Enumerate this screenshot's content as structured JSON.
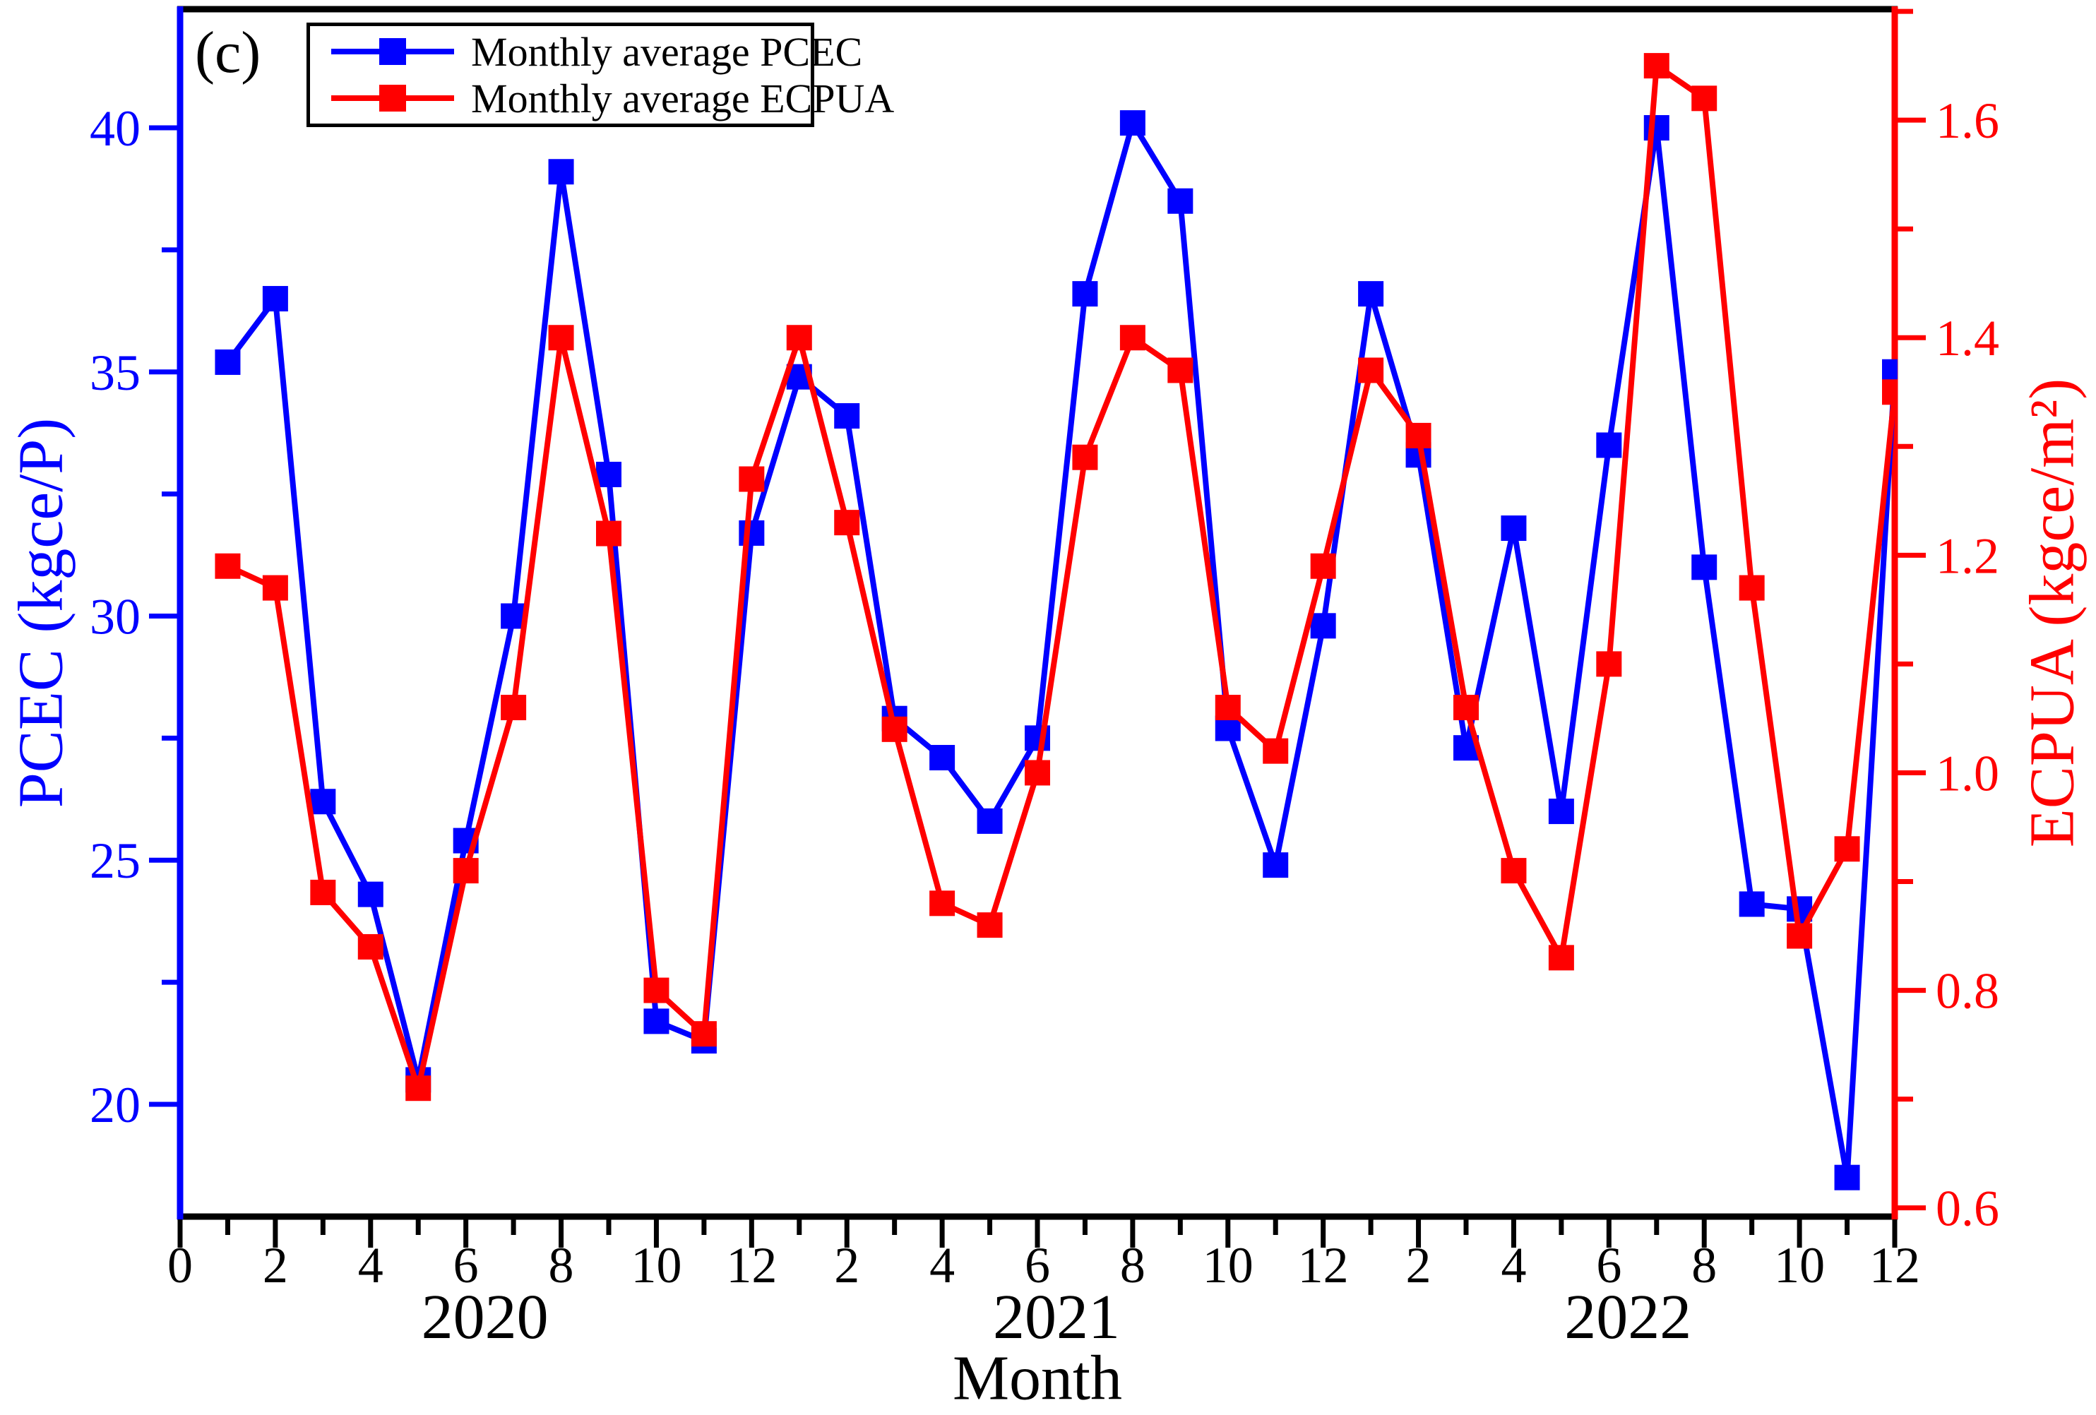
{
  "figure": {
    "panel_label": "(c)",
    "background": "#ffffff",
    "frame_color": "#000000"
  },
  "legend": {
    "items": [
      {
        "label": "Monthly average PCEC",
        "color": "#0000ff"
      },
      {
        "label": "Monthly average ECPUA",
        "color": "#ff0000"
      }
    ]
  },
  "chart_data": {
    "type": "line",
    "title": "",
    "xlabel": "Month",
    "x_months": [
      1,
      2,
      3,
      4,
      5,
      6,
      7,
      8,
      9,
      10,
      11,
      12,
      13,
      14,
      15,
      16,
      17,
      18,
      19,
      20,
      21,
      22,
      23,
      24,
      25,
      26,
      27,
      28,
      29,
      30,
      31,
      32,
      33,
      34,
      35,
      36
    ],
    "x_major_tick_months": [
      0,
      2,
      4,
      6,
      8,
      10,
      12,
      14,
      16,
      18,
      20,
      22,
      24,
      26,
      28,
      30,
      32,
      34,
      36
    ],
    "x_major_tick_labels": [
      "0",
      "2",
      "4",
      "6",
      "8",
      "10",
      "12",
      "2",
      "4",
      "6",
      "8",
      "10",
      "12",
      "2",
      "4",
      "6",
      "8",
      "10",
      "12"
    ],
    "year_labels": [
      {
        "label": "2020",
        "center_month": 6.4
      },
      {
        "label": "2021",
        "center_month": 18.4
      },
      {
        "label": "2022",
        "center_month": 30.4
      }
    ],
    "series": [
      {
        "name": "Monthly average PCEC",
        "axis": "left",
        "color": "#0000ff",
        "marker": "square",
        "values": [
          35.2,
          36.5,
          26.2,
          24.3,
          20.5,
          25.4,
          30.0,
          39.1,
          32.9,
          21.7,
          21.3,
          31.7,
          34.9,
          34.1,
          27.9,
          27.1,
          25.8,
          27.5,
          36.6,
          40.1,
          38.5,
          27.7,
          24.9,
          29.8,
          36.6,
          33.3,
          27.3,
          31.8,
          26.0,
          33.5,
          40.0,
          31.0,
          24.1,
          24.0,
          18.5,
          35.0
        ]
      },
      {
        "name": "Monthly average ECPUA",
        "axis": "right",
        "color": "#ff0000",
        "marker": "square",
        "values": [
          1.19,
          1.17,
          0.89,
          0.84,
          0.71,
          0.91,
          1.06,
          1.4,
          1.22,
          0.8,
          0.76,
          1.27,
          1.4,
          1.23,
          1.04,
          0.88,
          0.86,
          1.0,
          1.29,
          1.4,
          1.37,
          1.06,
          1.02,
          1.19,
          1.37,
          1.31,
          1.06,
          0.91,
          0.83,
          1.1,
          1.65,
          1.62,
          1.17,
          0.85,
          0.93,
          1.35
        ]
      }
    ],
    "left_axis": {
      "label": "PCEC (kgce/P)",
      "color": "#0000ff",
      "range": [
        17.7,
        42.43
      ],
      "major_ticks": [
        20,
        25,
        30,
        35,
        40
      ],
      "minor_ticks": [
        22.5,
        27.5,
        32.5,
        37.5
      ]
    },
    "right_axis": {
      "label": "ECPUA (kgce/m²)",
      "color": "#ff0000",
      "range": [
        0.592,
        1.702
      ],
      "major_ticks": [
        0.6,
        0.8,
        1.0,
        1.2,
        1.4,
        1.6
      ],
      "minor_ticks": [
        0.7,
        0.9,
        1.1,
        1.3,
        1.5,
        1.7
      ]
    },
    "x_axis": {
      "range_months": [
        0,
        36
      ],
      "grid": false,
      "legend_position": "top-left-inside"
    }
  }
}
